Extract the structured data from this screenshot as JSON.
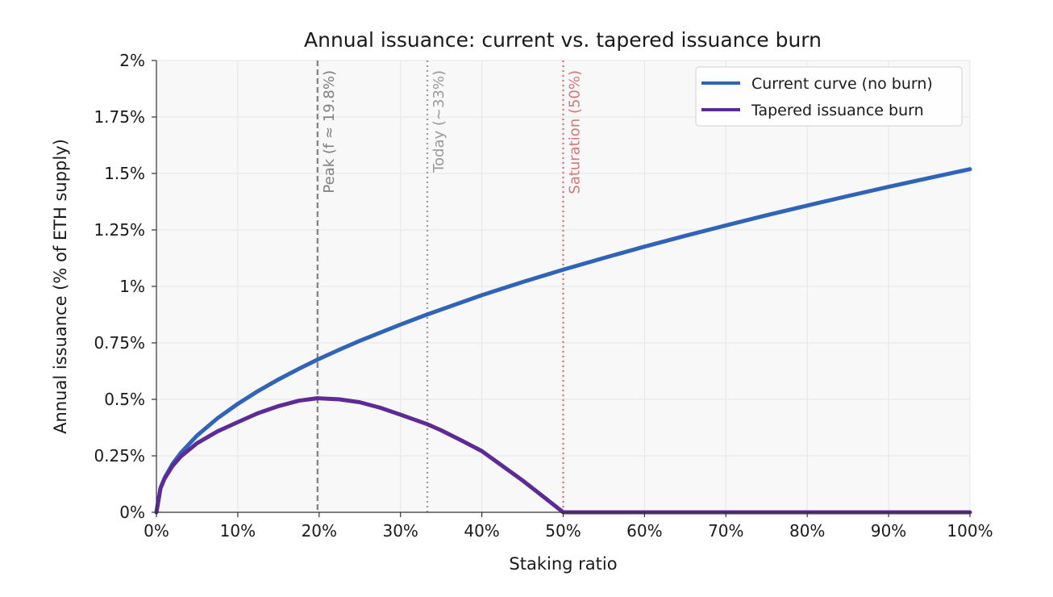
{
  "chart_data": {
    "type": "line",
    "title": "Annual issuance: current vs. tapered issuance burn",
    "xlabel": "Staking ratio",
    "ylabel": "Annual issuance (% of ETH supply)",
    "xlim": [
      0,
      100
    ],
    "ylim": [
      0,
      2
    ],
    "x_ticks": [
      0,
      10,
      20,
      30,
      40,
      50,
      60,
      70,
      80,
      90,
      100
    ],
    "x_tick_labels": [
      "0%",
      "10%",
      "20%",
      "30%",
      "40%",
      "50%",
      "60%",
      "70%",
      "80%",
      "90%",
      "100%"
    ],
    "y_ticks": [
      0,
      0.25,
      0.5,
      0.75,
      1,
      1.25,
      1.5,
      1.75,
      2
    ],
    "y_tick_labels": [
      "0%",
      "0.25%",
      "0.5%",
      "0.75%",
      "1%",
      "1.25%",
      "1.5%",
      "1.75%",
      "2%"
    ],
    "grid": true,
    "legend_position": "top-right",
    "series": [
      {
        "name": "Current curve (no burn)",
        "color": "#2f64b8",
        "x": [
          0,
          0.5,
          1,
          2,
          3,
          5,
          7.5,
          10,
          12.5,
          15,
          17.5,
          19.8,
          22.5,
          25,
          30,
          33.3,
          40,
          45,
          50,
          55,
          60,
          65,
          70,
          75,
          80,
          85,
          90,
          95,
          100
        ],
        "y": [
          0,
          0.107,
          0.152,
          0.215,
          0.263,
          0.34,
          0.416,
          0.48,
          0.537,
          0.588,
          0.635,
          0.676,
          0.72,
          0.759,
          0.831,
          0.876,
          0.961,
          1.019,
          1.074,
          1.126,
          1.176,
          1.224,
          1.27,
          1.315,
          1.358,
          1.4,
          1.441,
          1.48,
          1.519
        ]
      },
      {
        "name": "Tapered issuance burn",
        "color": "#5e2a96",
        "x": [
          0,
          0.5,
          1,
          2,
          3,
          5,
          7.5,
          10,
          12.5,
          15,
          17.5,
          19.8,
          22.5,
          25,
          27.5,
          30,
          33.3,
          35,
          37.5,
          40,
          42.5,
          45,
          47.5,
          50,
          55,
          60,
          65,
          70,
          75,
          80,
          85,
          90,
          95,
          100
        ],
        "y": [
          0,
          0.106,
          0.149,
          0.206,
          0.247,
          0.306,
          0.358,
          0.399,
          0.439,
          0.47,
          0.494,
          0.505,
          0.5,
          0.487,
          0.463,
          0.432,
          0.39,
          0.363,
          0.318,
          0.271,
          0.206,
          0.141,
          0.071,
          0,
          0,
          0,
          0,
          0,
          0,
          0,
          0,
          0,
          0,
          0
        ]
      }
    ],
    "annotations": [
      {
        "x": 19.8,
        "label": "Peak (f ≈ 19.8%)",
        "color": "#808080",
        "style": "dashed"
      },
      {
        "x": 33.3,
        "label": "Today (~33%)",
        "color": "#9a9a9a",
        "style": "dotted"
      },
      {
        "x": 50,
        "label": "Saturation (50%)",
        "color": "#d97575",
        "style": "dotted"
      }
    ]
  }
}
